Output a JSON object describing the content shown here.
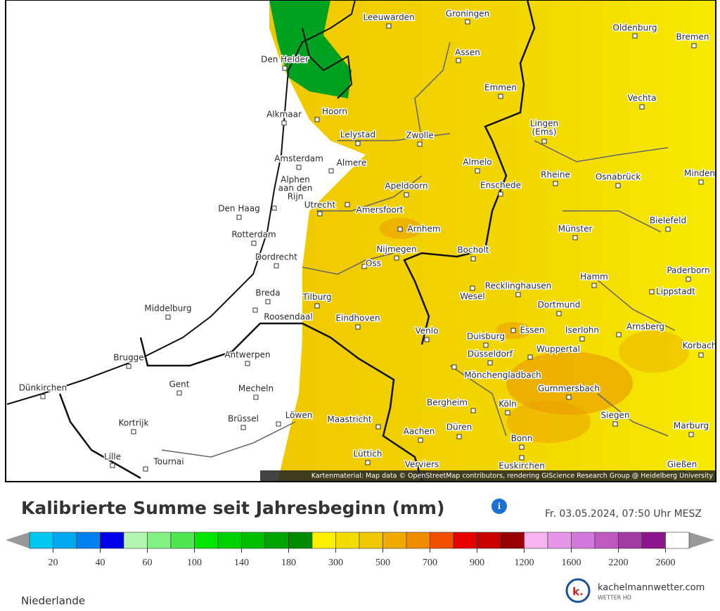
{
  "map": {
    "cities": [
      "Leeuwarden",
      "Groningen",
      "Oldenburg",
      "Bremen",
      "Den Helder",
      "Assen",
      "Emmen",
      "Vechta",
      "Alkmaar",
      "Hoorn",
      [
        "Lingen",
        "(Ems)"
      ],
      "Lelystad",
      "Zwolle",
      "Amsterdam",
      "Almere",
      "Almelo",
      [
        "Alphen",
        "aan den",
        "Rijn"
      ],
      "Rheine",
      "Osnabrück",
      "Minden",
      "Apeldoorn",
      "Enschede",
      "Den Haag",
      "Utrecht",
      "Amersfoort",
      "Arnhem",
      "Münster",
      "Bielefeld",
      "Rotterdam",
      "Nijmegen",
      "Bocholt",
      "Dordrecht",
      "Oss",
      "Paderborn",
      "Hamm",
      "Recklinghausen",
      "Lippstadt",
      "Breda",
      "Wesel",
      "Tilburg",
      "Middelburg",
      "Dortmund",
      "Roosendaal",
      "Eindhoven",
      "Essen",
      "Iserlohn",
      "Arnsberg",
      "Venlo",
      "Duisburg",
      "Korbach",
      "Wuppertal",
      "Düsseldorf",
      "Antwerpen",
      "Brugge",
      "Mönchengladbach",
      "Gent",
      "Mecheln",
      "Dünkirchen",
      "Gummersbach",
      "Bergheim",
      "Köln",
      "Löwen",
      "Siegen",
      "Brüssel",
      "Maastricht",
      "Kortrijk",
      "Düren",
      "Aachen",
      "Marburg",
      "Bonn",
      "Lüttich",
      "Lille",
      "Tournai",
      "Verviers",
      "Euskirchen",
      "Gießen"
    ],
    "attribution": "Kartenmaterial: Map data © OpenStreetMap contributors, rendering GIScience Research Group @ Heidelberg University"
  },
  "legend": {
    "title": "Kalibrierte Summe seit Jahresbeginn (mm)",
    "info_icon": "i",
    "date": "Fr. 03.05.2024, 07:50 Uhr MESZ",
    "colors": [
      "#00c8f0",
      "#00a8f0",
      "#0080f0",
      "#0000e6",
      "#b4f5b4",
      "#82f082",
      "#50e650",
      "#00e600",
      "#00d200",
      "#00be00",
      "#00a500",
      "#008c00",
      "#fff000",
      "#f5dc00",
      "#f0c800",
      "#f0aa00",
      "#f08c00",
      "#f05000",
      "#e60000",
      "#c80000",
      "#960000",
      "#f5b4f0",
      "#e696e6",
      "#d278dc",
      "#be5abe",
      "#a03ca0",
      "#8c148c",
      "#ffffff"
    ],
    "labels": [
      20,
      40,
      60,
      100,
      140,
      180,
      300,
      500,
      700,
      900,
      1200,
      1600,
      2200,
      2600
    ]
  },
  "footer": {
    "region": "Niederlande",
    "logo_mark": "k.",
    "logo_name": "kachelmannwetter.com",
    "logo_tagline": "WETTER HD"
  }
}
